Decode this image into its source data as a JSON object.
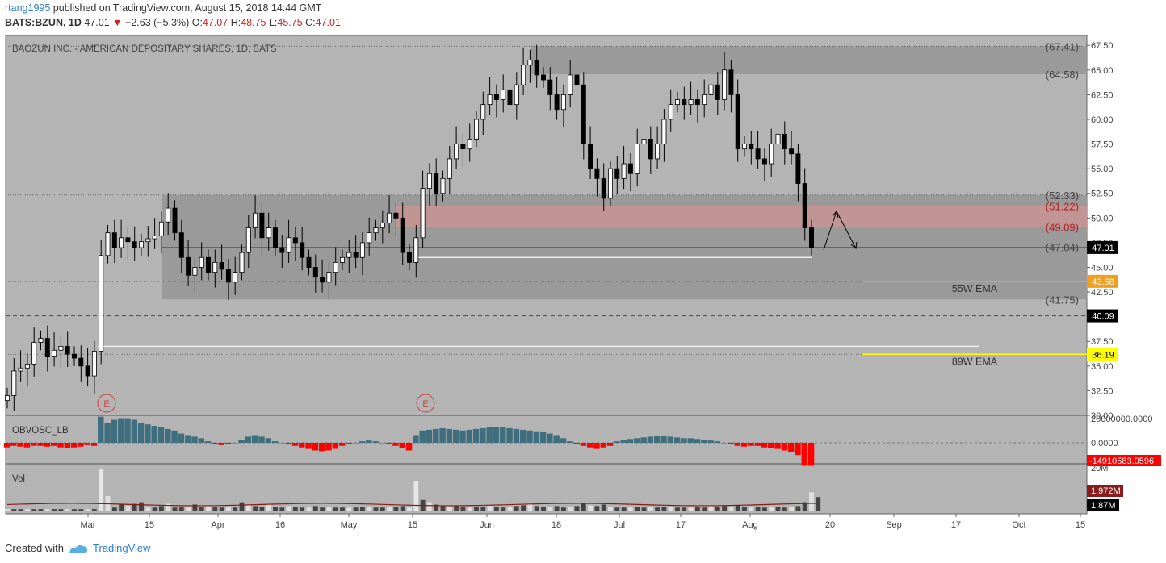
{
  "header": {
    "user": "rtang1995",
    "published_text": " published on TradingView.com, August 15, 2018 14:44 GMT",
    "symbol": "BATS:BZUN, 1D",
    "last": "47.01",
    "change": "−2.63 (−5.3%)",
    "o_label": "O:",
    "o": "47.07",
    "h_label": "H:",
    "h": "48.75",
    "l_label": "L:",
    "l": "45.75",
    "c_label": "C:",
    "c": "47.01"
  },
  "footer": {
    "created_with": "Created with",
    "brand": "TradingView"
  },
  "colors": {
    "bg": "#b4b4b4",
    "up": "#ffffff",
    "down": "#000000",
    "zone": "#9a9a9a",
    "resist": "#c99494",
    "ema55": "#f0a020",
    "ema89": "#ffff00",
    "obv_pos": "#3f6e7e",
    "obv_neg": "#ff0000",
    "vol_line": "#8b1a1a"
  },
  "chart_data": {
    "type": "candlestick",
    "title": "BAOZUN INC. - AMERICAN DEPOSITARY SHARES, 1D, BATS",
    "ylim": [
      30,
      68.5
    ],
    "y_ticks": [
      "67.50",
      "65.00",
      "62.50",
      "60.00",
      "57.50",
      "55.00",
      "52.50",
      "50.00",
      "47.50",
      "45.00",
      "42.50",
      "40.00",
      "37.50",
      "35.00",
      "32.50",
      "30.00"
    ],
    "x_ticks": [
      "Mar",
      "15",
      "Apr",
      "16",
      "May",
      "15",
      "Jun",
      "18",
      "Jul",
      "17",
      "Aug",
      "20",
      "Sep",
      "17",
      "Oct",
      "15"
    ],
    "levels": [
      "(67.41)",
      "(64.58)",
      "(52.33)",
      "(51.22)",
      "(49.09)",
      "(47.04)",
      "(41.75)"
    ],
    "price_labels": [
      {
        "text": "47.01",
        "value": 47.01
      },
      {
        "text": "43.58",
        "value": 43.58
      },
      {
        "text": "40.09",
        "value": 40.09
      },
      {
        "text": "36.19",
        "value": 36.19
      }
    ],
    "ema_labels": [
      "55W EMA",
      "89W EMA"
    ],
    "earnings_marker": "E",
    "closes": [
      32.0,
      34.5,
      34.8,
      35.2,
      37.4,
      37.8,
      36.0,
      36.6,
      37.0,
      36.2,
      35.8,
      35.0,
      34.0,
      36.5,
      46.2,
      48.5,
      47.0,
      48.0,
      47.6,
      47.0,
      47.6,
      47.9,
      48.2,
      49.6,
      51.0,
      48.5,
      46.0,
      44.2,
      45.0,
      46.0,
      44.5,
      45.5,
      44.8,
      43.5,
      44.5,
      46.5,
      49.0,
      50.5,
      48.0,
      49.0,
      47.0,
      46.5,
      48.0,
      47.5,
      46.0,
      45.0,
      44.0,
      43.5,
      44.5,
      45.5,
      46.0,
      46.5,
      46.0,
      47.5,
      48.5,
      49.0,
      49.5,
      50.5,
      50.0,
      46.5,
      45.5,
      48.0,
      53.0,
      54.5,
      52.5,
      54.0,
      56.0,
      57.5,
      57.0,
      58.0,
      60.0,
      61.5,
      62.5,
      62.0,
      63.0,
      61.5,
      63.5,
      65.5,
      66.0,
      64.5,
      64.0,
      62.5,
      61.0,
      62.5,
      64.5,
      63.5,
      57.5,
      55.0,
      54.0,
      52.0,
      55.0,
      54.0,
      55.5,
      54.5,
      57.5,
      58.0,
      56.0,
      57.5,
      60.0,
      61.5,
      62.0,
      61.5,
      62.0,
      61.5,
      62.5,
      63.5,
      62.0,
      65.0,
      62.5,
      57.0,
      57.5,
      57.0,
      56.0,
      55.5,
      57.5,
      58.5,
      57.0,
      56.5,
      53.5,
      49.0,
      47.01
    ],
    "obv": [
      -3,
      -2,
      -2.5,
      -3,
      -2,
      -2,
      -2.5,
      -2,
      -3,
      -3.5,
      -3,
      -2.5,
      -1.5,
      -2,
      17,
      13,
      15,
      16,
      16,
      15,
      13,
      12,
      11,
      10,
      9,
      8,
      6,
      5,
      4,
      3,
      1,
      -1,
      -1.5,
      -1,
      0,
      2,
      4,
      5,
      4,
      3,
      1,
      0,
      -1,
      -2,
      -3,
      -4,
      -5,
      -5.5,
      -5,
      -4,
      -2,
      -1,
      0,
      1,
      1.5,
      1,
      0,
      -1,
      -2,
      -3.5,
      -5,
      5,
      8,
      8.5,
      9,
      9.5,
      9,
      8.5,
      8,
      8.5,
      9,
      9.5,
      10,
      10.5,
      10,
      9.5,
      9,
      8.5,
      8,
      7.5,
      7,
      6,
      5,
      3,
      1,
      -1,
      -2,
      -3,
      -4,
      -3,
      -2,
      1,
      2,
      2.5,
      3,
      3.5,
      4,
      4.5,
      4.5,
      4,
      3.5,
      3,
      3,
      2.5,
      2,
      1.5,
      1,
      0,
      -1,
      -2,
      -2.5,
      -2,
      -2,
      -3,
      -3.5,
      -4,
      -5,
      -6,
      -8,
      -15,
      -15
    ],
    "volume_millions": [
      0.3,
      0.3,
      0.3,
      0.3,
      0.3,
      0.3,
      0.3,
      0.3,
      0.3,
      0.3,
      0.3,
      0.3,
      0.3,
      0.3,
      5.5,
      2.0,
      0.5,
      0.9,
      0.7,
      1.0,
      1.2,
      0.5,
      0.5,
      0.7,
      1.0,
      0.5,
      0.6,
      0.5,
      0.9,
      0.6,
      0.7,
      0.6,
      0.5,
      0.6,
      0.5,
      1.2,
      0.9,
      0.7,
      0.6,
      0.9,
      0.6,
      0.5,
      0.7,
      0.6,
      0.5,
      0.5,
      0.7,
      0.5,
      0.6,
      0.5,
      0.5,
      0.5,
      0.5,
      0.6,
      0.6,
      0.5,
      0.5,
      0.6,
      0.6,
      0.7,
      0.5,
      4.0,
      1.5,
      1.2,
      0.9,
      0.7,
      0.6,
      0.7,
      0.6,
      0.5,
      0.6,
      0.6,
      0.7,
      0.6,
      0.5,
      0.6,
      0.7,
      0.8,
      0.9,
      0.7,
      0.6,
      0.6,
      0.7,
      0.5,
      0.6,
      0.7,
      1.0,
      0.8,
      0.7,
      0.9,
      0.6,
      0.5,
      0.5,
      0.5,
      0.6,
      0.5,
      0.6,
      0.5,
      0.6,
      0.6,
      0.5,
      0.5,
      0.5,
      0.6,
      0.5,
      0.7,
      0.6,
      0.7,
      0.6,
      0.8,
      0.6,
      0.6,
      0.6,
      0.5,
      0.6,
      0.6,
      0.5,
      0.6,
      0.7,
      1.2,
      2.5,
      1.87
    ],
    "volume_ma_label": "1.972M",
    "volume_last_label": "1.87M",
    "obv_labels": [
      "20000000.0000",
      "0.0000",
      "-14910583.0596"
    ],
    "vol_axis_label": "20M",
    "indicators": [
      "OBVOSC_LB",
      "Vol"
    ]
  }
}
